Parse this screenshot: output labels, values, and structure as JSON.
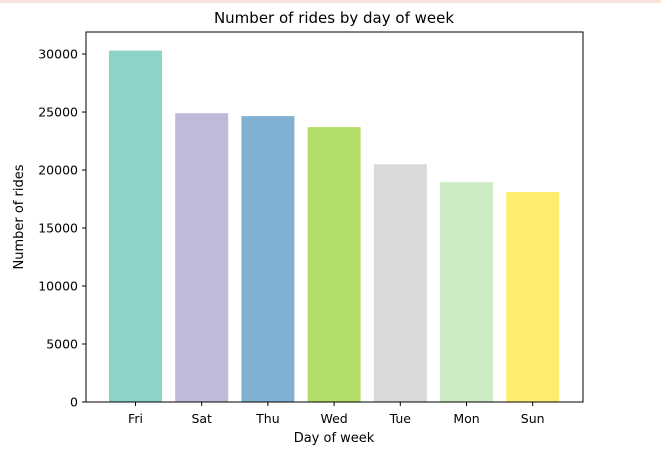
{
  "chart_data": {
    "type": "bar",
    "title": "Number of rides by day of week",
    "xlabel": "Day of week",
    "ylabel": "Number of rides",
    "categories": [
      "Fri",
      "Sat",
      "Thu",
      "Wed",
      "Tue",
      "Mon",
      "Sun"
    ],
    "values": [
      30300,
      24900,
      24650,
      23700,
      20500,
      18950,
      18100
    ],
    "colors": [
      "#8dd3c7",
      "#bebada",
      "#80b1d3",
      "#b3de69",
      "#d9d9d9",
      "#ccebc5",
      "#ffed6f"
    ],
    "ylim": [
      0,
      31900
    ],
    "yticks": [
      0,
      5000,
      10000,
      15000,
      20000,
      25000,
      30000
    ],
    "grid": false,
    "legend": "none"
  }
}
